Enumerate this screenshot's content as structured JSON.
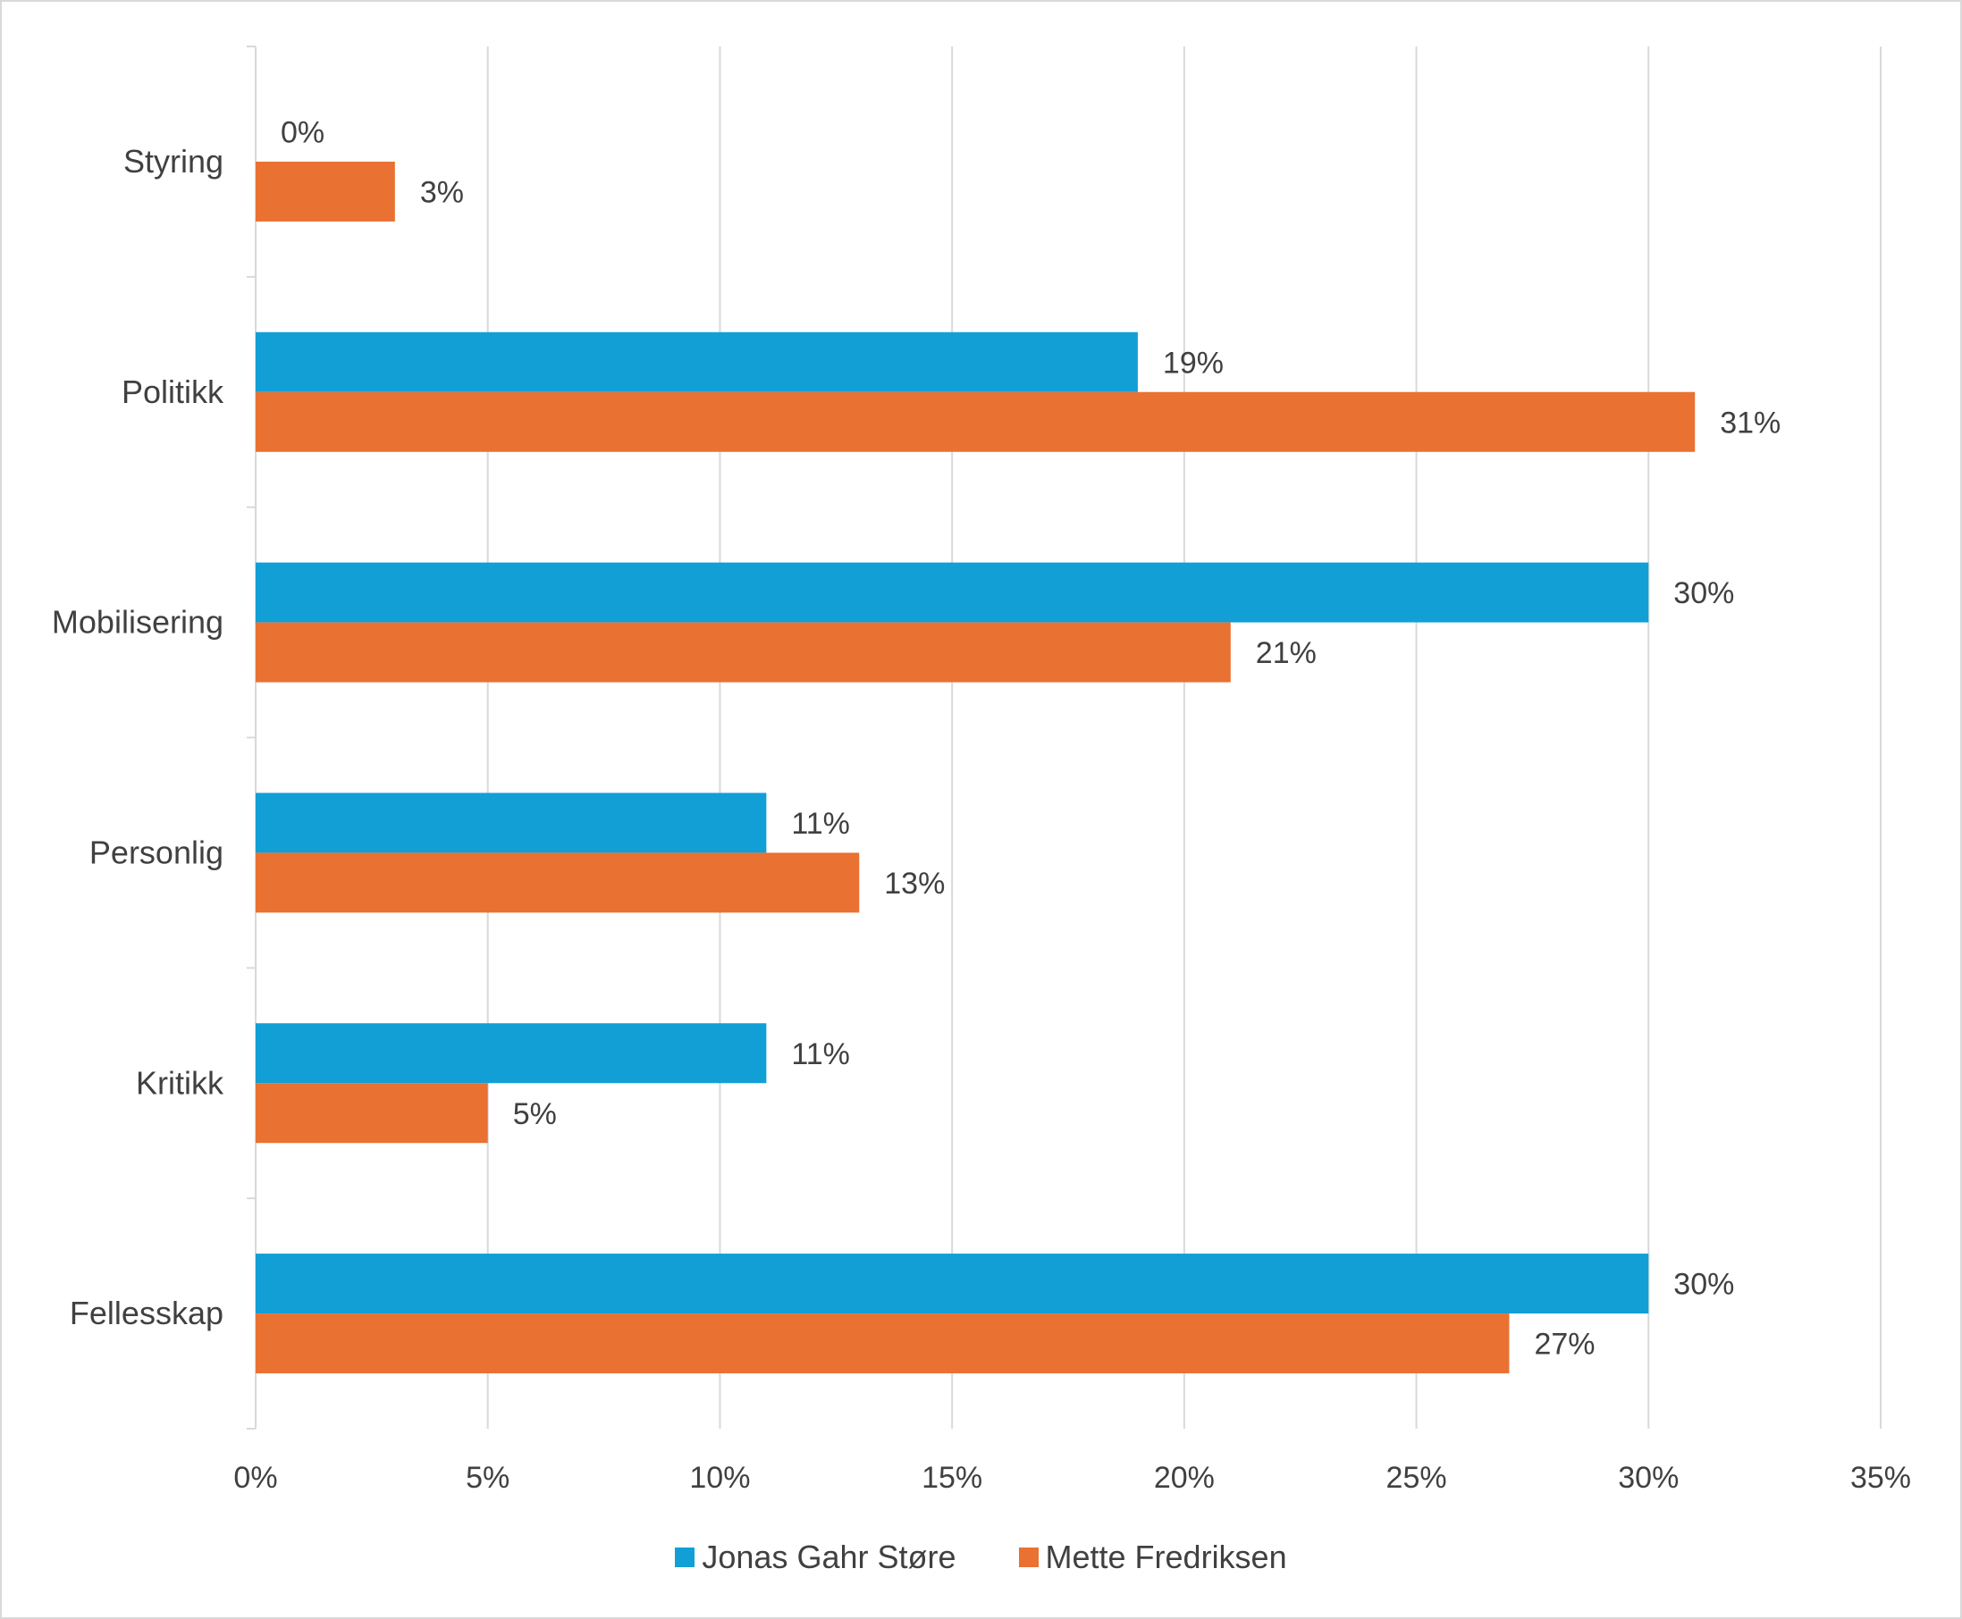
{
  "chart_data": {
    "type": "bar",
    "orientation": "horizontal",
    "title": "",
    "xlabel": "",
    "ylabel": "",
    "categories": [
      "Styring",
      "Politikk",
      "Mobilisering",
      "Personlig",
      "Kritikk",
      "Fellesskap"
    ],
    "series": [
      {
        "name": "Jonas Gahr Støre",
        "color": "#119FD6",
        "values": [
          0,
          19,
          30,
          11,
          11,
          30
        ],
        "labels": [
          "0%",
          "19%",
          "30%",
          "11%",
          "11%",
          "30%"
        ]
      },
      {
        "name": "Mette Fredriksen",
        "color": "#E97132",
        "values": [
          3,
          31,
          21,
          13,
          5,
          27
        ],
        "labels": [
          "3%",
          "31%",
          "21%",
          "13%",
          "5%",
          "27%"
        ]
      }
    ],
    "xlim": [
      0,
      35
    ],
    "xticks": [
      0,
      5,
      10,
      15,
      20,
      25,
      30,
      35
    ],
    "xtick_labels": [
      "0%",
      "5%",
      "10%",
      "15%",
      "20%",
      "25%",
      "30%",
      "35%"
    ],
    "grid": true,
    "legend_position": "bottom"
  }
}
